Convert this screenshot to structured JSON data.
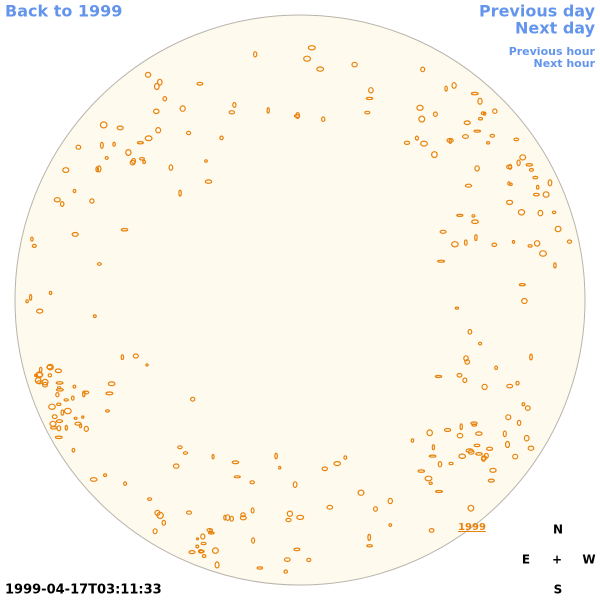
{
  "nav": {
    "back": "Back to 1999",
    "previous_day": "Previous day",
    "next_day": "Next day",
    "previous_hour": "Previous hour",
    "next_hour": "Next hour"
  },
  "image": {
    "year_link": "1999",
    "timestamp": "1999-04-17T03:11:33"
  },
  "compass": {
    "north": "N",
    "east": "E",
    "center": "+",
    "west": "W",
    "south": "S"
  }
}
